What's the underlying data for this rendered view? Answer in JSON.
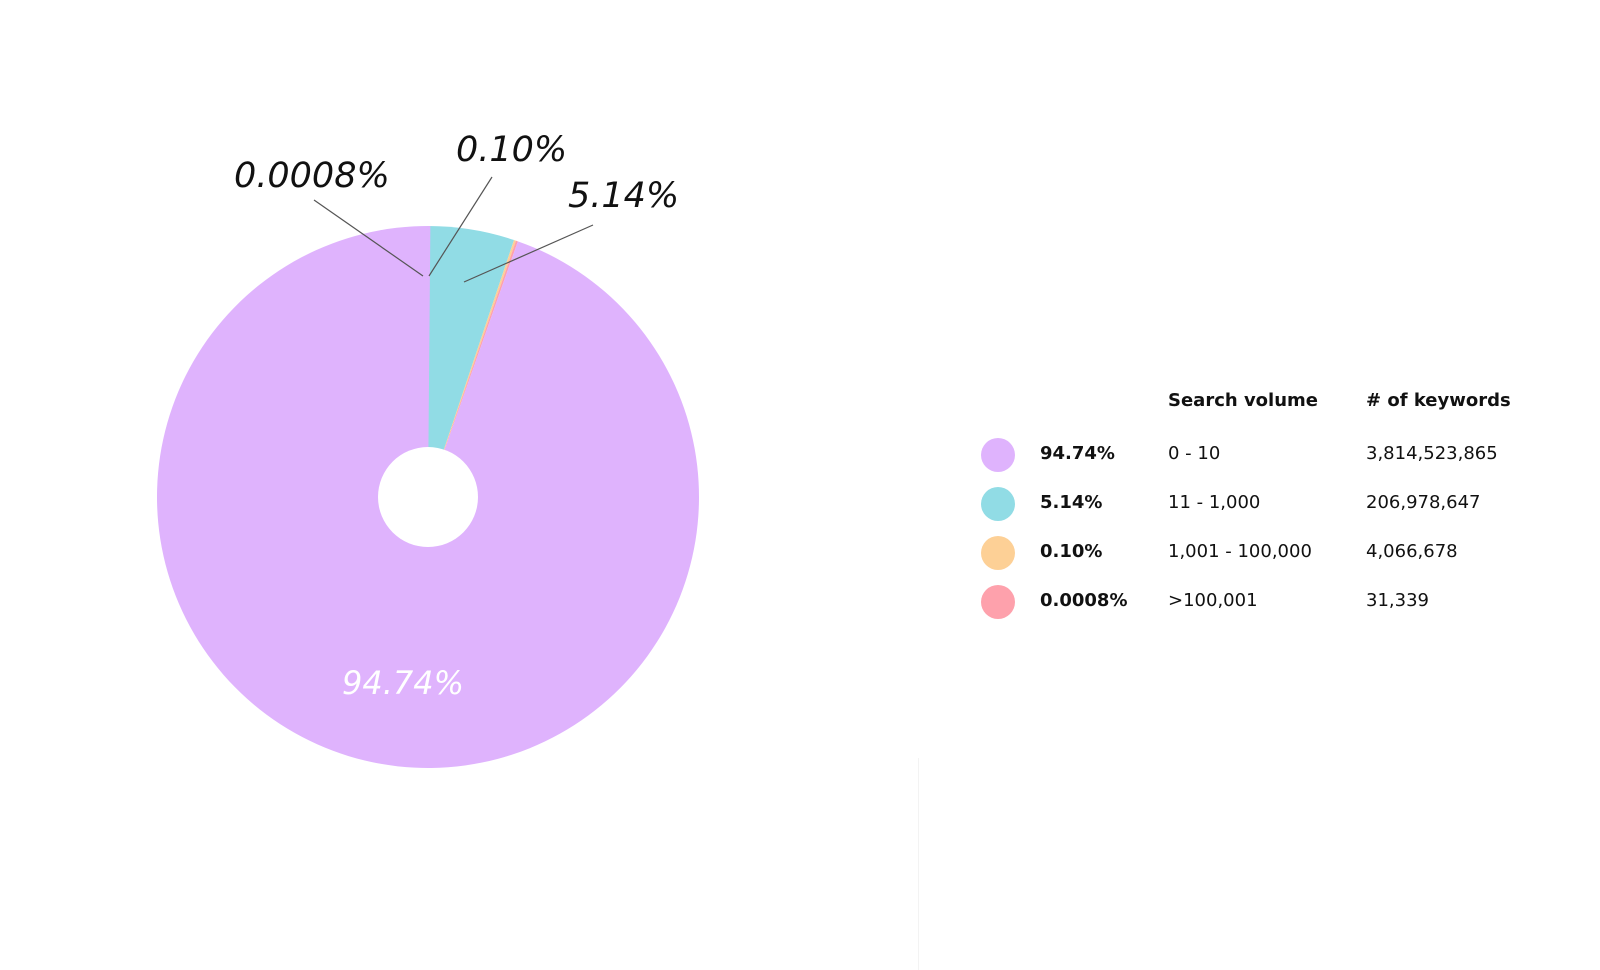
{
  "chart_data": {
    "type": "pie",
    "title": "",
    "categories": [
      "0 - 10",
      "11 - 1,000",
      "1,001 - 100,000",
      ">100,001"
    ],
    "values": [
      94.74,
      5.14,
      0.1,
      0.0008
    ],
    "slice_labels": [
      "94.74%",
      "5.14%",
      "0.10%",
      "0.0008%"
    ],
    "keyword_counts": [
      "3,814,523,865",
      "206,978,647",
      "4,066,678",
      "31,339"
    ],
    "colors": [
      "#dfb3fd",
      "#91dce5",
      "#fdd096",
      "#fea1ac"
    ],
    "legend_headers": {
      "search_volume": "Search volume",
      "keywords": "# of keywords"
    },
    "legend_placement": "right",
    "donut_hole": true
  }
}
